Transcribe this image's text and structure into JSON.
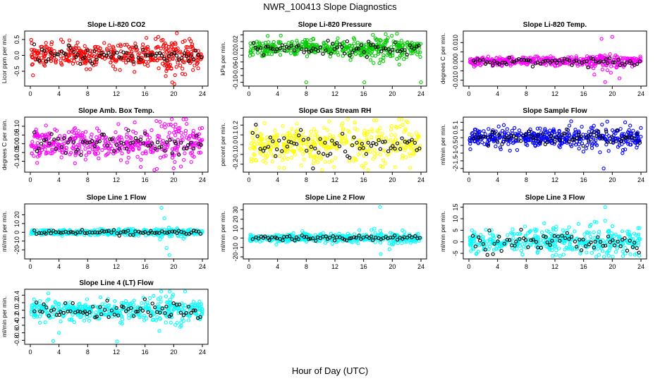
{
  "figure": {
    "title": "NWR_100413  Slope Diagnostics",
    "xlabel": "Hour of Day (UTC)"
  },
  "chart_data": [
    {
      "type": "scatter",
      "title": "Slope Li-820 CO2",
      "ylabel": "Licor ppm per min.",
      "color": "#ff0000",
      "x_ticks": [
        0,
        4,
        8,
        12,
        16,
        20,
        24
      ],
      "xlim": [
        0,
        24
      ],
      "y_ticks": [
        -0.5,
        0.0,
        0.5
      ],
      "y_tick_labels": [
        "-0.5",
        "0.0",
        "0.5"
      ],
      "ylim": [
        -0.9,
        0.7
      ],
      "spread": 0.18,
      "outliers": [
        [
          4.3,
          0.5
        ],
        [
          19.8,
          -0.85
        ],
        [
          16.2,
          0.55
        ],
        [
          20.1,
          -0.9
        ],
        [
          22.4,
          0.45
        ]
      ]
    },
    {
      "type": "scatter",
      "title": "Slope Li-820 Pressure",
      "ylabel": "kPa per min.",
      "color": "#00cc00",
      "x_ticks": [
        0,
        4,
        8,
        12,
        16,
        20,
        24
      ],
      "xlim": [
        0,
        24
      ],
      "y_ticks": [
        -0.1,
        -0.06,
        -0.02,
        0.02
      ],
      "y_tick_labels": [
        "-0.10",
        "-0.06",
        "-0.02",
        "0.02"
      ],
      "y_tick_labels_minor": [
        "-0.08",
        "-0.04",
        "0.00",
        "0.04"
      ],
      "y_minor_ticks": [
        -0.08,
        -0.04,
        0.0,
        0.04
      ],
      "ylim": [
        -0.105,
        0.045
      ],
      "spread": 0.012,
      "outliers": [
        [
          8.0,
          -0.1
        ],
        [
          16.1,
          -0.1
        ],
        [
          24.0,
          -0.1
        ],
        [
          17.3,
          0.04
        ]
      ]
    },
    {
      "type": "scatter",
      "title": "Slope Li-820 Temp.",
      "ylabel": "degrees C per min.",
      "color": "#ff00ff",
      "x_ticks": [
        0,
        4,
        8,
        12,
        16,
        20,
        24
      ],
      "xlim": [
        0,
        24
      ],
      "y_ticks": [
        -0.01,
        0.0,
        0.01
      ],
      "y_tick_labels": [
        "-0.010",
        "0.000",
        "0.010"
      ],
      "y_minor_ticks": [
        -0.005,
        0.005
      ],
      "ylim": [
        -0.012,
        0.015
      ],
      "spread": 0.0012,
      "outliers": [
        [
          19.0,
          -0.011
        ],
        [
          20.0,
          0.013
        ],
        [
          18.5,
          0.012
        ],
        [
          21.0,
          -0.009
        ],
        [
          19.8,
          -0.006
        ],
        [
          17.5,
          -0.007
        ]
      ]
    },
    {
      "type": "scatter",
      "title": "Slope Amb. Box Temp.",
      "ylabel": "degrees C per min.",
      "color": "#ff00ff",
      "x_ticks": [
        0,
        4,
        8,
        12,
        16,
        20,
        24
      ],
      "xlim": [
        0,
        24
      ],
      "y_ticks": [
        -0.1,
        -0.05,
        0.0,
        0.05,
        0.1
      ],
      "y_tick_labels": [
        "-0.10",
        "-0.05",
        "0.00",
        "0.05",
        "0.10"
      ],
      "ylim": [
        -0.15,
        0.14
      ],
      "spread": 0.045,
      "outliers": [
        [
          17.6,
          0.13
        ],
        [
          20.0,
          -0.14
        ],
        [
          21.0,
          -0.13
        ],
        [
          18.3,
          0.1
        ]
      ]
    },
    {
      "type": "scatter",
      "title": "Slope Gas Stream RH",
      "ylabel": "percent per min.",
      "color": "#ffff00",
      "x_ticks": [
        0,
        4,
        8,
        12,
        16,
        20,
        24
      ],
      "xlim": [
        0,
        24
      ],
      "y_ticks": [
        -0.2,
        -0.1,
        0.0,
        0.1,
        0.2
      ],
      "y_tick_labels": [
        "-0.2",
        "-0.1",
        "0.0",
        "0.1",
        "0.2"
      ],
      "ylim": [
        -0.26,
        0.26
      ],
      "spread": 0.09,
      "outliers": [
        [
          2.2,
          0.22
        ],
        [
          17.8,
          0.25
        ],
        [
          4.9,
          -0.24
        ],
        [
          18.4,
          -0.22
        ],
        [
          16.0,
          -0.23
        ]
      ]
    },
    {
      "type": "scatter",
      "title": "Slope Sample Flow",
      "ylabel": "ml/min per min.",
      "color": "#0000ff",
      "x_ticks": [
        0,
        4,
        8,
        12,
        16,
        20,
        24
      ],
      "xlim": [
        0,
        24
      ],
      "y_ticks": [
        -2,
        -1.5,
        -1,
        -0.5,
        0,
        0.5,
        1
      ],
      "y_tick_labels": [
        "-2",
        "-1.5",
        "-1",
        "-0.5",
        "0",
        "0.5",
        "1"
      ],
      "ylim": [
        -2.1,
        1.2
      ],
      "spread": 0.3,
      "outliers": [
        [
          18.8,
          -2.0
        ],
        [
          19.3,
          1.05
        ],
        [
          0.2,
          -0.75
        ],
        [
          21.8,
          1.0
        ]
      ]
    },
    {
      "type": "scatter",
      "title": "Slope Line 1 Flow",
      "ylabel": "ml/min per min.",
      "color": "#00ffff",
      "x_ticks": [
        0,
        4,
        8,
        12,
        16,
        20,
        24
      ],
      "xlim": [
        0,
        24
      ],
      "y_ticks": [
        -20,
        -10,
        0,
        10,
        20
      ],
      "y_tick_labels": [
        "-20",
        "-10",
        "0",
        "10",
        "20"
      ],
      "ylim": [
        -28,
        30
      ],
      "spread": 1.6,
      "outliers": [
        [
          18.3,
          28
        ],
        [
          19.4,
          -26
        ],
        [
          18.7,
          16
        ],
        [
          19.0,
          -18
        ],
        [
          18.1,
          -8
        ]
      ]
    },
    {
      "type": "scatter",
      "title": "Slope Line 2 Flow",
      "ylabel": "ml/min per min.",
      "color": "#00ffff",
      "x_ticks": [
        0,
        4,
        8,
        12,
        16,
        20,
        24
      ],
      "xlim": [
        0,
        24
      ],
      "y_ticks": [
        -20,
        -10,
        0,
        10,
        20,
        30
      ],
      "y_tick_labels": [
        "-20",
        "-10",
        "0",
        "10",
        "20",
        "30"
      ],
      "ylim": [
        -20,
        34
      ],
      "spread": 2.2,
      "outliers": [
        [
          18.3,
          33
        ],
        [
          18.4,
          -17
        ],
        [
          19.6,
          -12
        ],
        [
          17.5,
          10
        ]
      ]
    },
    {
      "type": "scatter",
      "title": "Slope Line 3 Flow",
      "ylabel": "ml/min per min.",
      "color": "#00ffff",
      "x_ticks": [
        0,
        4,
        8,
        12,
        16,
        20,
        24
      ],
      "xlim": [
        0,
        24
      ],
      "y_ticks": [
        -5,
        0,
        5,
        10,
        15
      ],
      "y_tick_labels": [
        "-5",
        "0",
        "5",
        "10",
        "15"
      ],
      "ylim": [
        -6.5,
        15.5
      ],
      "spread": 2.6,
      "outliers": [
        [
          19.0,
          15
        ],
        [
          19.5,
          -6
        ],
        [
          23.8,
          6
        ],
        [
          10.5,
          8
        ],
        [
          17.8,
          8.5
        ]
      ]
    },
    {
      "type": "scatter",
      "title": "Slope Line 4 (LT) Flow",
      "ylabel": "ml/min per min.",
      "color": "#00ffff",
      "x_ticks": [
        0,
        4,
        8,
        12,
        16,
        20,
        24
      ],
      "xlim": [
        0,
        24
      ],
      "y_ticks": [
        -0.8,
        -0.6,
        -0.4,
        -0.2,
        0.0,
        0.2,
        0.4
      ],
      "y_tick_labels": [
        "-0.8",
        "-0.6",
        "-0.4",
        "-0.2",
        "0.0",
        "0.2",
        "0.4"
      ],
      "ylim": [
        -0.85,
        0.5
      ],
      "spread": 0.13,
      "outliers": [
        [
          4.0,
          -0.6
        ],
        [
          12.1,
          -0.83
        ],
        [
          2.5,
          0.45
        ],
        [
          3.2,
          -0.82
        ],
        [
          18.0,
          -0.55
        ],
        [
          17.2,
          0.38
        ]
      ]
    }
  ]
}
